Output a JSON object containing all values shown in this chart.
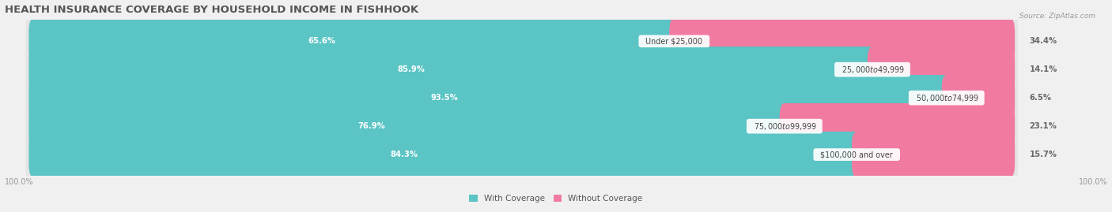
{
  "title": "HEALTH INSURANCE COVERAGE BY HOUSEHOLD INCOME IN FISHHOOK",
  "source": "Source: ZipAtlas.com",
  "categories": [
    "Under $25,000",
    "$25,000 to $49,999",
    "$50,000 to $74,999",
    "$75,000 to $99,999",
    "$100,000 and over"
  ],
  "with_coverage": [
    65.6,
    85.9,
    93.5,
    76.9,
    84.3
  ],
  "without_coverage": [
    34.4,
    14.1,
    6.5,
    23.1,
    15.7
  ],
  "color_with": "#5bc4c4",
  "color_without": "#f07aa0",
  "bg_color": "#f0f0f0",
  "row_bg": "#e4e4e4",
  "title_fontsize": 9.5,
  "label_fontsize": 7.2,
  "axis_label_fontsize": 7,
  "legend_fontsize": 7.5,
  "bar_height": 0.62,
  "figsize": [
    14.06,
    2.69
  ],
  "dpi": 100
}
